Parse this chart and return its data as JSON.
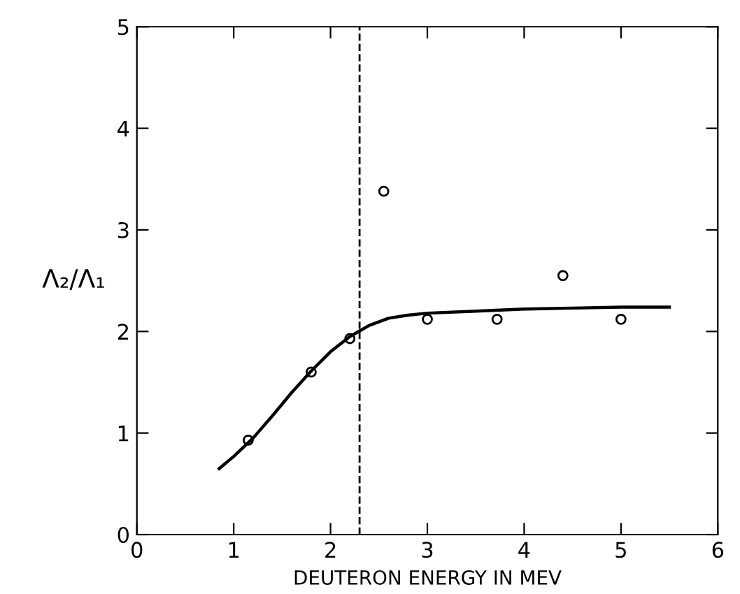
{
  "chart_data": {
    "type": "scatter",
    "xlabel": "DEUTERON ENERGY IN MEV",
    "ylabel": "Λ₂/Λ₁",
    "xlim": [
      0,
      6
    ],
    "ylim": [
      0,
      5
    ],
    "xticks": [
      0,
      1,
      2,
      3,
      4,
      5,
      6
    ],
    "yticks": [
      0,
      1,
      2,
      3,
      4,
      5
    ],
    "grid": false,
    "legend": false,
    "series": [
      {
        "color": "#000000",
        "marker": "circle",
        "x": [
          1.15,
          1.8,
          2.2,
          2.55,
          3.0,
          3.72,
          4.4,
          5.0
        ],
        "values": [
          0.93,
          1.6,
          1.93,
          3.38,
          2.12,
          2.12,
          2.55,
          2.12
        ]
      },
      {
        "type": "line",
        "color": "#000000",
        "marker": "none",
        "line_style": "solid",
        "x": [
          0.85,
          1.0,
          1.2,
          1.4,
          1.6,
          1.8,
          2.0,
          2.2,
          2.4,
          2.6,
          2.8,
          3.0,
          3.5,
          4.0,
          4.5,
          5.0,
          5.5
        ],
        "values": [
          0.65,
          0.77,
          0.95,
          1.17,
          1.4,
          1.61,
          1.8,
          1.95,
          2.06,
          2.13,
          2.16,
          2.18,
          2.2,
          2.22,
          2.23,
          2.24,
          2.24
        ]
      }
    ],
    "ref_lines": [
      {
        "axis": "x",
        "value": 2.3,
        "color": "#000000",
        "line_style": "dashed"
      }
    ]
  }
}
